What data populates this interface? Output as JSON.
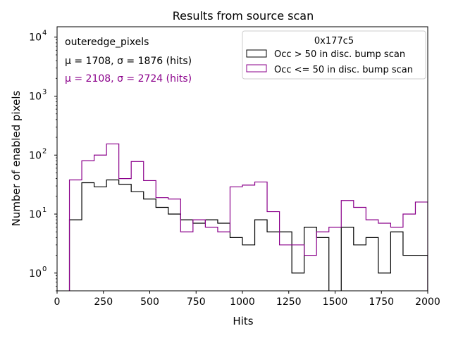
{
  "chart_data": {
    "type": "histogram",
    "title": "Results from source scan",
    "xlabel": "Hits",
    "ylabel": "Number of enabled pixels",
    "xlim": [
      0,
      2000
    ],
    "ylim": [
      0.5,
      15000
    ],
    "yscale": "log",
    "xticks": [
      "0",
      "250",
      "500",
      "750",
      "1000",
      "1250",
      "1500",
      "1750",
      "2000"
    ],
    "yticks": [
      {
        "base": "10",
        "exp": "0",
        "value": 1
      },
      {
        "base": "10",
        "exp": "1",
        "value": 10
      },
      {
        "base": "10",
        "exp": "2",
        "value": 100
      },
      {
        "base": "10",
        "exp": "3",
        "value": 1000
      },
      {
        "base": "10",
        "exp": "4",
        "value": 10000
      }
    ],
    "bin_edges": [
      66.7,
      133.3,
      200,
      266.7,
      333.3,
      400,
      466.7,
      533.3,
      600,
      666.7,
      733.3,
      800,
      866.7,
      933.3,
      1000,
      1066.7,
      1133.3,
      1200,
      1266.7,
      1333.3,
      1400,
      1466.7,
      1533.3,
      1600,
      1666.7,
      1733.3,
      1800,
      1866.7,
      1933.3,
      2000
    ],
    "annotation": {
      "title": "outeredge_pixels",
      "lines": [
        {
          "text": "μ = 1708, σ = 1876 (hits)",
          "color": "#000000"
        },
        {
          "text": "μ = 2108, σ = 2724 (hits)",
          "color": "#8b008b"
        }
      ]
    },
    "legend": {
      "title": "0x177c5",
      "position": "top-right"
    },
    "series": [
      {
        "name": "Occ > 50 in disc. bump scan",
        "color": "#000000",
        "values": [
          8,
          34,
          29,
          38,
          32,
          24,
          18,
          13,
          10,
          8,
          7,
          8,
          7,
          4,
          3,
          8,
          5,
          5,
          1,
          6,
          4,
          0,
          6,
          3,
          4,
          1,
          5,
          2,
          2
        ]
      },
      {
        "name": "Occ <= 50 in disc. bump scan",
        "color": "#8b008b",
        "values": [
          38,
          80,
          100,
          155,
          40,
          78,
          37,
          19,
          18,
          5,
          8,
          6,
          5,
          29,
          31,
          35,
          11,
          3,
          3,
          2,
          5,
          6,
          17,
          13,
          8,
          7,
          6,
          10,
          16
        ]
      }
    ]
  }
}
